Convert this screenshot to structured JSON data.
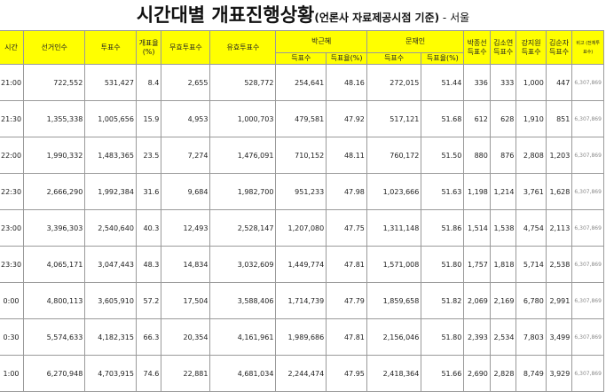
{
  "title": {
    "main": "시간대별 개표진행상황",
    "paren": "(언론사 자료제공시점 기준)",
    "region": " - 서울"
  },
  "headers": {
    "time": "시간",
    "electorate": "선거인수",
    "votes": "투표수",
    "count_rate": "개표율 (%)",
    "invalid": "무효투표수",
    "valid": "유효투표수",
    "park": "박근혜",
    "moon": "문재인",
    "vote_count": "득표수",
    "vote_rate": "득표율(%)",
    "c1": "박종선 득표수",
    "c2": "김소연 득표수",
    "c3": "강지원 득표수",
    "c4": "김순자 득표수",
    "note": "비고 (전체투표수)"
  },
  "rows": [
    {
      "time": "21:00",
      "electorate": "722,552",
      "votes": "531,427",
      "rate": "8.4",
      "invalid": "2,655",
      "valid": "528,772",
      "park": "254,641",
      "park_pct": "48.16",
      "moon": "272,015",
      "moon_pct": "51.44",
      "c1": "336",
      "c2": "333",
      "c3": "1,000",
      "c4": "447",
      "note": "6,307,869"
    },
    {
      "time": "21:30",
      "electorate": "1,355,338",
      "votes": "1,005,656",
      "rate": "15.9",
      "invalid": "4,953",
      "valid": "1,000,703",
      "park": "479,581",
      "park_pct": "47.92",
      "moon": "517,121",
      "moon_pct": "51.68",
      "c1": "612",
      "c2": "628",
      "c3": "1,910",
      "c4": "851",
      "note": "6,307,869"
    },
    {
      "time": "22:00",
      "electorate": "1,990,332",
      "votes": "1,483,365",
      "rate": "23.5",
      "invalid": "7,274",
      "valid": "1,476,091",
      "park": "710,152",
      "park_pct": "48.11",
      "moon": "760,172",
      "moon_pct": "51.50",
      "c1": "880",
      "c2": "876",
      "c3": "2,808",
      "c4": "1,203",
      "note": "6,307,869"
    },
    {
      "time": "22:30",
      "electorate": "2,666,290",
      "votes": "1,992,384",
      "rate": "31.6",
      "invalid": "9,684",
      "valid": "1,982,700",
      "park": "951,233",
      "park_pct": "47.98",
      "moon": "1,023,666",
      "moon_pct": "51.63",
      "c1": "1,198",
      "c2": "1,214",
      "c3": "3,761",
      "c4": "1,628",
      "note": "6,307,869"
    },
    {
      "time": "23:00",
      "electorate": "3,396,303",
      "votes": "2,540,640",
      "rate": "40.3",
      "invalid": "12,493",
      "valid": "2,528,147",
      "park": "1,207,080",
      "park_pct": "47.75",
      "moon": "1,311,148",
      "moon_pct": "51.86",
      "c1": "1,514",
      "c2": "1,538",
      "c3": "4,754",
      "c4": "2,113",
      "note": "6,307,869"
    },
    {
      "time": "23:30",
      "electorate": "4,065,171",
      "votes": "3,047,443",
      "rate": "48.3",
      "invalid": "14,834",
      "valid": "3,032,609",
      "park": "1,449,774",
      "park_pct": "47.81",
      "moon": "1,571,008",
      "moon_pct": "51.80",
      "c1": "1,757",
      "c2": "1,818",
      "c3": "5,714",
      "c4": "2,538",
      "note": "6,307,869"
    },
    {
      "time": "0:00",
      "electorate": "4,800,113",
      "votes": "3,605,910",
      "rate": "57.2",
      "invalid": "17,504",
      "valid": "3,588,406",
      "park": "1,714,739",
      "park_pct": "47.79",
      "moon": "1,859,658",
      "moon_pct": "51.82",
      "c1": "2,069",
      "c2": "2,169",
      "c3": "6,780",
      "c4": "2,991",
      "note": "6,307,869"
    },
    {
      "time": "0:30",
      "electorate": "5,574,633",
      "votes": "4,182,315",
      "rate": "66.3",
      "invalid": "20,354",
      "valid": "4,161,961",
      "park": "1,989,686",
      "park_pct": "47.81",
      "moon": "2,156,046",
      "moon_pct": "51.80",
      "c1": "2,393",
      "c2": "2,534",
      "c3": "7,803",
      "c4": "3,499",
      "note": "6,307,869"
    },
    {
      "time": "1:00",
      "electorate": "6,270,948",
      "votes": "4,703,915",
      "rate": "74.6",
      "invalid": "22,881",
      "valid": "4,681,034",
      "park": "2,244,474",
      "park_pct": "47.95",
      "moon": "2,418,364",
      "moon_pct": "51.66",
      "c1": "2,690",
      "c2": "2,828",
      "c3": "8,749",
      "c4": "3,929",
      "note": "6,307,869"
    }
  ]
}
